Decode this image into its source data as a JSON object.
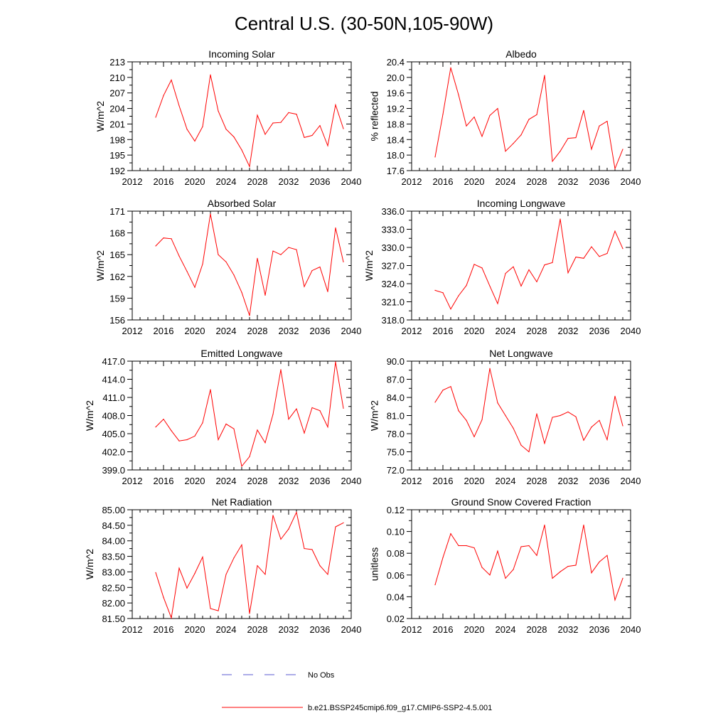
{
  "title": "Central U.S. (30-50N,105-90W)",
  "colors": {
    "series": "#ff0000",
    "obs": "#5a5ad0",
    "axis": "#000000"
  },
  "legend": {
    "obs_label": "No Obs",
    "model_label": "b.e21.BSSP245cmip6.f09_g17.CMIP6-SSP2-4.5.001"
  },
  "chart_data": [
    {
      "type": "line",
      "title": "Incoming Solar",
      "xlabel": "",
      "ylabel": "W/m^2",
      "xlim": [
        2012,
        2040
      ],
      "ylim": [
        192,
        213
      ],
      "xticks": [
        2012,
        2016,
        2020,
        2024,
        2028,
        2032,
        2036,
        2040
      ],
      "yticks": [
        192,
        195,
        198,
        201,
        204,
        207,
        210,
        213
      ],
      "ytick_labels": [
        "192",
        "195",
        "198",
        "201",
        "204",
        "207",
        "210",
        "213"
      ],
      "series": [
        {
          "name": "b.e21.BSSP245cmip6.f09_g17.CMIP6-SSP2-4.5.001",
          "x": [
            2015,
            2016,
            2017,
            2018,
            2019,
            2020,
            2021,
            2022,
            2023,
            2024,
            2025,
            2026,
            2027,
            2028,
            2029,
            2030,
            2031,
            2032,
            2033,
            2034,
            2035,
            2036,
            2037,
            2038,
            2039
          ],
          "values": [
            202.3,
            206.5,
            209.5,
            204.5,
            200.0,
            197.7,
            200.5,
            210.5,
            203.5,
            200.0,
            198.5,
            196.0,
            192.8,
            202.7,
            199.0,
            201.2,
            201.3,
            203.2,
            202.9,
            198.4,
            198.8,
            200.7,
            196.8,
            204.7,
            200.1
          ]
        }
      ]
    },
    {
      "type": "line",
      "title": "Albedo",
      "xlabel": "",
      "ylabel": "% reflected",
      "xlim": [
        2012,
        2040
      ],
      "ylim": [
        17.6,
        20.4
      ],
      "xticks": [
        2012,
        2016,
        2020,
        2024,
        2028,
        2032,
        2036,
        2040
      ],
      "yticks": [
        17.6,
        18.0,
        18.4,
        18.8,
        19.2,
        19.6,
        20.0,
        20.4
      ],
      "ytick_labels": [
        "17.6",
        "18.0",
        "18.4",
        "18.8",
        "19.2",
        "19.6",
        "20.0",
        "20.4"
      ],
      "series": [
        {
          "name": "b.e21.BSSP245cmip6.f09_g17.CMIP6-SSP2-4.5.001",
          "x": [
            2015,
            2016,
            2017,
            2018,
            2019,
            2020,
            2021,
            2022,
            2023,
            2024,
            2025,
            2026,
            2027,
            2028,
            2029,
            2030,
            2031,
            2032,
            2033,
            2034,
            2035,
            2036,
            2037,
            2038,
            2039
          ],
          "values": [
            17.95,
            19.05,
            20.25,
            19.55,
            18.75,
            18.98,
            18.48,
            19.02,
            19.2,
            18.1,
            18.3,
            18.52,
            18.92,
            19.04,
            20.05,
            17.84,
            18.1,
            18.43,
            18.45,
            19.15,
            18.15,
            18.75,
            18.87,
            17.65,
            18.15
          ]
        }
      ]
    },
    {
      "type": "line",
      "title": "Absorbed Solar",
      "xlabel": "",
      "ylabel": "W/m^2",
      "xlim": [
        2012,
        2040
      ],
      "ylim": [
        156,
        171
      ],
      "xticks": [
        2012,
        2016,
        2020,
        2024,
        2028,
        2032,
        2036,
        2040
      ],
      "yticks": [
        156,
        159,
        162,
        165,
        168,
        171
      ],
      "ytick_labels": [
        "156",
        "159",
        "162",
        "165",
        "168",
        "171"
      ],
      "series": [
        {
          "name": "b.e21.BSSP245cmip6.f09_g17.CMIP6-SSP2-4.5.001",
          "x": [
            2015,
            2016,
            2017,
            2018,
            2019,
            2020,
            2021,
            2022,
            2023,
            2024,
            2025,
            2026,
            2027,
            2028,
            2029,
            2030,
            2031,
            2032,
            2033,
            2034,
            2035,
            2036,
            2037,
            2038,
            2039
          ],
          "values": [
            166.2,
            167.3,
            167.2,
            164.8,
            162.7,
            160.5,
            163.7,
            170.6,
            165.0,
            164.0,
            162.2,
            159.8,
            156.6,
            164.5,
            159.4,
            165.5,
            165.0,
            166.0,
            165.7,
            160.6,
            162.8,
            163.3,
            159.9,
            168.7,
            164.0
          ]
        }
      ]
    },
    {
      "type": "line",
      "title": "Incoming Longwave",
      "xlabel": "",
      "ylabel": "W/m^2",
      "xlim": [
        2012,
        2040
      ],
      "ylim": [
        318,
        336
      ],
      "xticks": [
        2012,
        2016,
        2020,
        2024,
        2028,
        2032,
        2036,
        2040
      ],
      "yticks": [
        318,
        321,
        324,
        327,
        330,
        333,
        336
      ],
      "ytick_labels": [
        "318.0",
        "321.0",
        "324.0",
        "327.0",
        "330.0",
        "333.0",
        "336.0"
      ],
      "series": [
        {
          "name": "b.e21.BSSP245cmip6.f09_g17.CMIP6-SSP2-4.5.001",
          "x": [
            2015,
            2016,
            2017,
            2018,
            2019,
            2020,
            2021,
            2022,
            2023,
            2024,
            2025,
            2026,
            2027,
            2028,
            2029,
            2030,
            2031,
            2032,
            2033,
            2034,
            2035,
            2036,
            2037,
            2038,
            2039
          ],
          "values": [
            322.9,
            322.5,
            319.8,
            322.0,
            323.7,
            327.2,
            326.6,
            323.6,
            320.7,
            325.7,
            326.8,
            323.6,
            326.3,
            324.3,
            327.1,
            327.5,
            334.7,
            325.8,
            328.4,
            328.2,
            330.1,
            328.5,
            329.0,
            332.7,
            329.8
          ]
        }
      ]
    },
    {
      "type": "line",
      "title": "Emitted Longwave",
      "xlabel": "",
      "ylabel": "W/m^2",
      "xlim": [
        2012,
        2040
      ],
      "ylim": [
        399,
        417
      ],
      "xticks": [
        2012,
        2016,
        2020,
        2024,
        2028,
        2032,
        2036,
        2040
      ],
      "yticks": [
        399,
        402,
        405,
        408,
        411,
        414,
        417
      ],
      "ytick_labels": [
        "399.0",
        "402.0",
        "405.0",
        "408.0",
        "411.0",
        "414.0",
        "417.0"
      ],
      "series": [
        {
          "name": "b.e21.BSSP245cmip6.f09_g17.CMIP6-SSP2-4.5.001",
          "x": [
            2015,
            2016,
            2017,
            2018,
            2019,
            2020,
            2021,
            2022,
            2023,
            2024,
            2025,
            2026,
            2027,
            2028,
            2029,
            2030,
            2031,
            2032,
            2033,
            2034,
            2035,
            2036,
            2037,
            2038,
            2039
          ],
          "values": [
            406.1,
            407.4,
            405.5,
            403.8,
            404.0,
            404.6,
            406.8,
            412.3,
            404.0,
            406.6,
            405.8,
            399.6,
            401.2,
            405.6,
            403.5,
            408.2,
            415.6,
            407.4,
            409.1,
            405.1,
            409.3,
            408.8,
            406.1,
            416.9,
            409.2
          ]
        }
      ]
    },
    {
      "type": "line",
      "title": "Net Longwave",
      "xlabel": "",
      "ylabel": "W/m^2",
      "xlim": [
        2012,
        2040
      ],
      "ylim": [
        72,
        90
      ],
      "xticks": [
        2012,
        2016,
        2020,
        2024,
        2028,
        2032,
        2036,
        2040
      ],
      "yticks": [
        72,
        75,
        78,
        81,
        84,
        87,
        90
      ],
      "ytick_labels": [
        "72.0",
        "75.0",
        "78.0",
        "81.0",
        "84.0",
        "87.0",
        "90.0"
      ],
      "series": [
        {
          "name": "b.e21.BSSP245cmip6.f09_g17.CMIP6-SSP2-4.5.001",
          "x": [
            2015,
            2016,
            2017,
            2018,
            2019,
            2020,
            2021,
            2022,
            2023,
            2024,
            2025,
            2026,
            2027,
            2028,
            2029,
            2030,
            2031,
            2032,
            2033,
            2034,
            2035,
            2036,
            2037,
            2038,
            2039
          ],
          "values": [
            83.2,
            85.2,
            85.8,
            81.8,
            80.2,
            77.5,
            80.3,
            88.8,
            83.1,
            81.0,
            78.9,
            76.1,
            75.0,
            81.3,
            76.4,
            80.7,
            81.0,
            81.6,
            80.8,
            76.9,
            79.1,
            80.2,
            77.0,
            84.2,
            79.3
          ]
        }
      ]
    },
    {
      "type": "line",
      "title": "Net Radiation",
      "xlabel": "",
      "ylabel": "W/m^2",
      "xlim": [
        2012,
        2040
      ],
      "ylim": [
        81.5,
        85.0
      ],
      "xticks": [
        2012,
        2016,
        2020,
        2024,
        2028,
        2032,
        2036,
        2040
      ],
      "yticks": [
        81.5,
        82.0,
        82.5,
        83.0,
        83.5,
        84.0,
        84.5,
        85.0
      ],
      "ytick_labels": [
        "81.50",
        "82.00",
        "82.50",
        "83.00",
        "83.50",
        "84.00",
        "84.50",
        "85.00"
      ],
      "series": [
        {
          "name": "b.e21.BSSP245cmip6.f09_g17.CMIP6-SSP2-4.5.001",
          "x": [
            2015,
            2016,
            2017,
            2018,
            2019,
            2020,
            2021,
            2022,
            2023,
            2024,
            2025,
            2026,
            2027,
            2028,
            2029,
            2030,
            2031,
            2032,
            2033,
            2034,
            2035,
            2036,
            2037,
            2038,
            2039
          ],
          "values": [
            82.98,
            82.18,
            81.52,
            83.12,
            82.48,
            82.95,
            83.48,
            81.82,
            81.75,
            82.92,
            83.45,
            83.87,
            81.66,
            83.2,
            82.92,
            84.82,
            84.05,
            84.38,
            84.92,
            83.75,
            83.72,
            83.2,
            82.92,
            84.45,
            84.58
          ]
        }
      ]
    },
    {
      "type": "line",
      "title": "Ground Snow Covered Fraction",
      "xlabel": "",
      "ylabel": "unitless",
      "xlim": [
        2012,
        2040
      ],
      "ylim": [
        0.02,
        0.12
      ],
      "xticks": [
        2012,
        2016,
        2020,
        2024,
        2028,
        2032,
        2036,
        2040
      ],
      "yticks": [
        0.02,
        0.04,
        0.06,
        0.08,
        0.1,
        0.12
      ],
      "ytick_labels": [
        "0.02",
        "0.04",
        "0.06",
        "0.08",
        "0.10",
        "0.12"
      ],
      "series": [
        {
          "name": "b.e21.BSSP245cmip6.f09_g17.CMIP6-SSP2-4.5.001",
          "x": [
            2015,
            2016,
            2017,
            2018,
            2019,
            2020,
            2021,
            2022,
            2023,
            2024,
            2025,
            2026,
            2027,
            2028,
            2029,
            2030,
            2031,
            2032,
            2033,
            2034,
            2035,
            2036,
            2037,
            2038,
            2039
          ],
          "values": [
            0.051,
            0.076,
            0.098,
            0.087,
            0.087,
            0.085,
            0.067,
            0.06,
            0.082,
            0.057,
            0.065,
            0.086,
            0.087,
            0.078,
            0.106,
            0.057,
            0.063,
            0.068,
            0.069,
            0.106,
            0.062,
            0.072,
            0.078,
            0.037,
            0.057
          ]
        }
      ]
    }
  ]
}
